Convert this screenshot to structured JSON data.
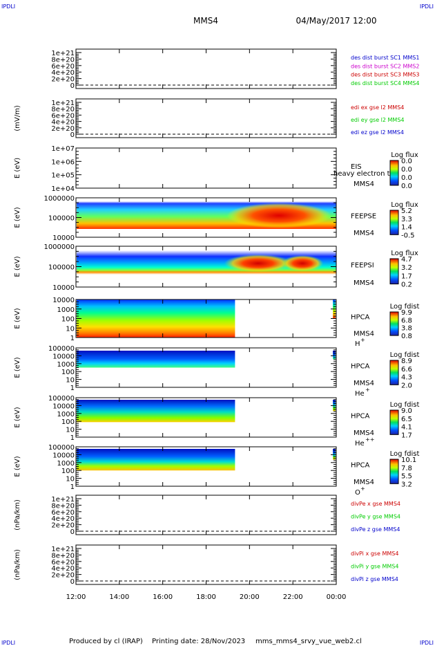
{
  "page": {
    "corner_tl": "IPDLI",
    "corner_tr": "IPDLI",
    "corner_bl": "IPDLI",
    "corner_br": "IPDLI",
    "spacecraft": "MMS4",
    "datetime": "04/May/2017 12:00",
    "footer": {
      "produced": "Produced by cl (IRAP)",
      "printing": "Printing date: 28/Nov/2023",
      "file": "mms_mms4_srvy_vue_web2.cl"
    }
  },
  "chart_data": [
    {
      "type": "line",
      "panel": "des-dist",
      "ylabel": "",
      "yticks": [
        "1e+21",
        "8e+20",
        "6e+20",
        "4e+20",
        "2e+20",
        "0"
      ],
      "series": [
        {
          "name": "des dist burst SC1 MMS1",
          "color": "#0000cc"
        },
        {
          "name": "des dist burst SC2 MMS2",
          "color": "#cc00cc"
        },
        {
          "name": "des dist burst SC3 MMS3",
          "color": "#cc0000"
        },
        {
          "name": "des dist burst SC4 MMS4",
          "color": "#00cc00"
        }
      ]
    },
    {
      "type": "line",
      "panel": "edi-e",
      "ylabel": "(mV/m)",
      "yticks": [
        "1e+21",
        "8e+20",
        "6e+20",
        "4e+20",
        "2e+20",
        "0"
      ],
      "series": [
        {
          "name": "edi ex gse l2 MMS4",
          "color": "#cc0000"
        },
        {
          "name": "edi ey gse l2 MMS4",
          "color": "#00cc00"
        },
        {
          "name": "edi ez gse l2 MMS4",
          "color": "#0000cc"
        }
      ]
    },
    {
      "type": "heatmap",
      "panel": "eis",
      "ylabel": "E (eV)",
      "yticks": [
        "1e+07",
        "1e+06",
        "1e+05",
        "1e+04"
      ],
      "side": [
        "EIS",
        "MMS4"
      ],
      "overlay": "heavy electron to",
      "colorbar_title": "Log flux",
      "colorbar": [
        "0.0",
        "0.0",
        "0.0",
        "0.0"
      ],
      "filled": false
    },
    {
      "type": "heatmap",
      "panel": "feepse",
      "ylabel": "E (eV)",
      "yticks": [
        "1000000",
        "100000",
        "10000"
      ],
      "side": [
        "FEEPSE",
        "MMS4"
      ],
      "colorbar_title": "Log flux",
      "colorbar": [
        "5.2",
        "3.3",
        "1.4",
        "-0.5"
      ],
      "filled": true
    },
    {
      "type": "heatmap",
      "panel": "feepsi",
      "ylabel": "E (eV)",
      "yticks": [
        "1000000",
        "100000",
        "10000"
      ],
      "side": [
        "FEEPSI",
        "MMS4"
      ],
      "colorbar_title": "Log flux",
      "colorbar": [
        "4.7",
        "3.2",
        "1.7",
        "0.2"
      ],
      "filled": true
    },
    {
      "type": "heatmap",
      "panel": "hpca-h",
      "ylabel": "E (eV)",
      "yticks": [
        "10000",
        "1000",
        "100",
        "10",
        "1"
      ],
      "side": [
        "HPCA",
        "MMS4",
        "H",
        "+"
      ],
      "colorbar_title": "Log fdist",
      "colorbar": [
        "9.9",
        "6.8",
        "3.8",
        "0.8"
      ],
      "filled": true,
      "data_end": "19:20"
    },
    {
      "type": "heatmap",
      "panel": "hpca-he",
      "ylabel": "E (eV)",
      "yticks": [
        "100000",
        "10000",
        "1000",
        "100",
        "10",
        "1"
      ],
      "side": [
        "HPCA",
        "MMS4",
        "He",
        "+"
      ],
      "colorbar_title": "Log fdist",
      "colorbar": [
        "8.9",
        "6.6",
        "4.3",
        "2.0"
      ],
      "filled": true,
      "data_end": "19:20"
    },
    {
      "type": "heatmap",
      "panel": "hpca-hepp",
      "ylabel": "E (eV)",
      "yticks": [
        "100000",
        "10000",
        "1000",
        "100",
        "10",
        "1"
      ],
      "side": [
        "HPCA",
        "MMS4",
        "He",
        "++"
      ],
      "colorbar_title": "Log fdist",
      "colorbar": [
        "9.0",
        "6.5",
        "4.1",
        "1.7"
      ],
      "filled": true,
      "data_end": "19:20"
    },
    {
      "type": "heatmap",
      "panel": "hpca-o",
      "ylabel": "E (eV)",
      "yticks": [
        "100000",
        "10000",
        "1000",
        "100",
        "10",
        "1"
      ],
      "side": [
        "HPCA",
        "MMS4",
        "O",
        "+"
      ],
      "colorbar_title": "Log fdist",
      "colorbar": [
        "10.1",
        "7.8",
        "5.5",
        "3.2"
      ],
      "filled": true,
      "data_end": "19:20"
    },
    {
      "type": "line",
      "panel": "divpe",
      "ylabel": "(nPa/km)",
      "yticks": [
        "1e+21",
        "8e+20",
        "6e+20",
        "4e+20",
        "2e+20",
        "0"
      ],
      "series": [
        {
          "name": "divPe x gse MMS4",
          "color": "#cc0000"
        },
        {
          "name": "divPe y gse MMS4",
          "color": "#00cc00"
        },
        {
          "name": "divPe z gse MMS4",
          "color": "#0000cc"
        }
      ]
    },
    {
      "type": "line",
      "panel": "divpi",
      "ylabel": "(nPa/km)",
      "yticks": [
        "1e+21",
        "8e+20",
        "6e+20",
        "4e+20",
        "2e+20",
        "0"
      ],
      "series": [
        {
          "name": "divPi x gse MMS4",
          "color": "#cc0000"
        },
        {
          "name": "divPi y gse MMS4",
          "color": "#00cc00"
        },
        {
          "name": "divPi z gse MMS4",
          "color": "#0000cc"
        }
      ]
    }
  ],
  "x_axis": {
    "ticks": [
      "12:00",
      "14:00",
      "16:00",
      "18:00",
      "20:00",
      "22:00",
      "00:00"
    ]
  }
}
